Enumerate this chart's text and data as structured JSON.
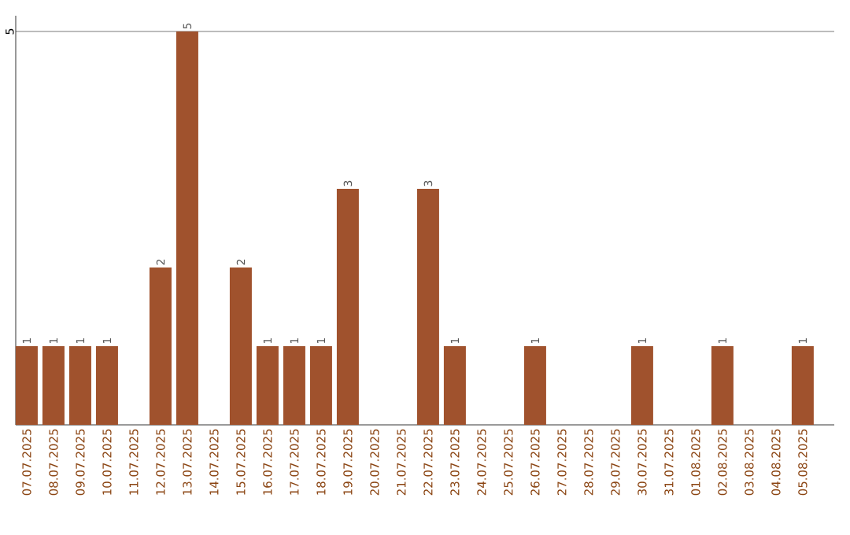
{
  "chart_data": {
    "type": "bar",
    "categories": [
      "07.07.2025",
      "08.07.2025",
      "09.07.2025",
      "10.07.2025",
      "11.07.2025",
      "12.07.2025",
      "13.07.2025",
      "14.07.2025",
      "15.07.2025",
      "16.07.2025",
      "17.07.2025",
      "18.07.2025",
      "19.07.2025",
      "20.07.2025",
      "21.07.2025",
      "22.07.2025",
      "23.07.2025",
      "24.07.2025",
      "25.07.2025",
      "26.07.2025",
      "27.07.2025",
      "28.07.2025",
      "29.07.2025",
      "30.07.2025",
      "31.07.2025",
      "01.08.2025",
      "02.08.2025",
      "03.08.2025",
      "04.08.2025",
      "05.08.2025"
    ],
    "values": [
      1,
      1,
      1,
      1,
      0,
      2,
      5,
      0,
      2,
      1,
      1,
      1,
      3,
      0,
      0,
      3,
      1,
      0,
      0,
      1,
      0,
      0,
      0,
      1,
      0,
      0,
      1,
      0,
      0,
      1
    ],
    "value_labels": [
      "1",
      "1",
      "1",
      "1",
      null,
      "2",
      "5",
      null,
      "2",
      "1",
      "1",
      "1",
      "3",
      null,
      null,
      "3",
      "1",
      null,
      null,
      "1",
      null,
      null,
      null,
      "1",
      null,
      null,
      "1",
      null,
      null,
      "1"
    ],
    "color": "#a0522d",
    "ylim": [
      0,
      5.2
    ],
    "yticks": [
      5
    ],
    "grid": "y"
  }
}
